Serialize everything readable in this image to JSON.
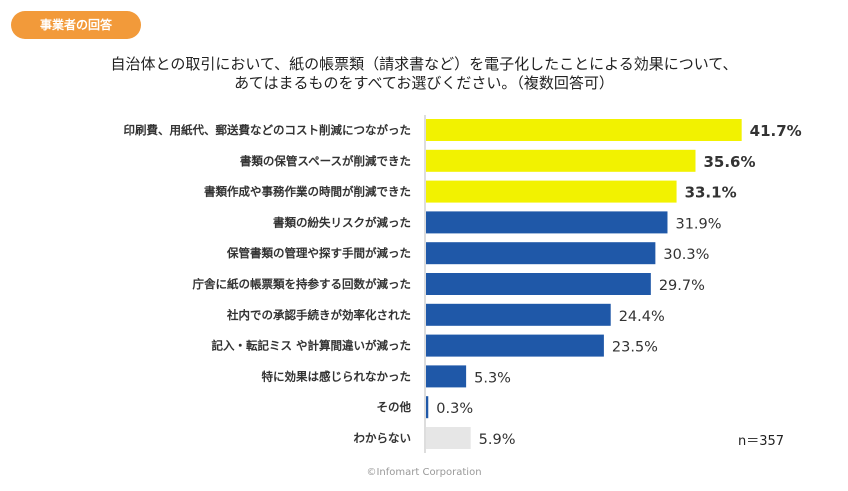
{
  "badge": "事業者の回答",
  "question": {
    "line1": "自治体との取引において、紙の帳票類（請求書など）を電子化したことによる効果について、",
    "line2": "あてはまるものをすべてお選びください。（複数回答可）"
  },
  "sample_size": "n＝357",
  "footnote": "©Infomart Corporation",
  "colors": {
    "yellow": "#f2f200",
    "blue": "#1f58a8",
    "gray": "#e6e6e6"
  },
  "chart_data": {
    "type": "bar",
    "orientation": "horizontal",
    "categories": [
      "印刷費、用紙代、郵送費などのコスト削減につながった",
      "書類の保管スペースが削減できた",
      "書類作成や事務作業の時間が削減できた",
      "書類の紛失リスクが減った",
      "保管書類の管理や探す手間が減った",
      "庁舎に紙の帳票類を持参する回数が減った",
      "社内での承認手続きが効率化された",
      "記入・転記ミス や計算間違いが減った",
      "特に効果は感じられなかった",
      "その他",
      "わからない"
    ],
    "values": [
      41.7,
      35.6,
      33.1,
      31.9,
      30.3,
      29.7,
      24.4,
      23.5,
      5.3,
      0.3,
      5.9
    ],
    "labels": [
      "41.7%",
      "35.6%",
      "33.1%",
      "31.9%",
      "30.3%",
      "29.7%",
      "24.4%",
      "23.5%",
      "5.3%",
      "0.3%",
      "5.9%"
    ],
    "bar_colors": [
      "yellow",
      "yellow",
      "yellow",
      "blue",
      "blue",
      "blue",
      "blue",
      "blue",
      "blue",
      "blue",
      "gray"
    ],
    "bold_labels": [
      true,
      true,
      true,
      false,
      false,
      false,
      false,
      false,
      false,
      false,
      false
    ],
    "xlim": [
      0,
      45
    ],
    "grid": false,
    "legend": "none"
  }
}
